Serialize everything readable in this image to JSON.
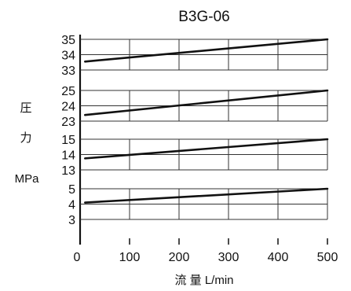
{
  "chart_data": {
    "type": "line",
    "title": "B3G-06",
    "ylabel_lines": [
      "圧",
      "力",
      "MPa"
    ],
    "xlabel": "流 量 L/min",
    "xlim": [
      0,
      500
    ],
    "x_ticks": [
      "0",
      "100",
      "200",
      "300",
      "400",
      "500"
    ],
    "grid": true,
    "panels": [
      {
        "ylim": [
          33,
          35
        ],
        "y_ticks": [
          "35",
          "34",
          "33"
        ],
        "series": [
          {
            "x": [
              10,
              500
            ],
            "y": [
              33.55,
              35.0
            ]
          }
        ]
      },
      {
        "ylim": [
          23,
          25
        ],
        "y_ticks": [
          "25",
          "24",
          "23"
        ],
        "series": [
          {
            "x": [
              10,
              500
            ],
            "y": [
              23.4,
              25.0
            ]
          }
        ]
      },
      {
        "ylim": [
          13,
          15
        ],
        "y_ticks": [
          "15",
          "14",
          "13"
        ],
        "series": [
          {
            "x": [
              10,
              500
            ],
            "y": [
              13.75,
              15.0
            ]
          }
        ]
      },
      {
        "ylim": [
          3,
          5
        ],
        "y_ticks": [
          "5",
          "4",
          "3"
        ],
        "series": [
          {
            "x": [
              10,
              500
            ],
            "y": [
              4.1,
              5.0
            ]
          }
        ]
      }
    ]
  }
}
